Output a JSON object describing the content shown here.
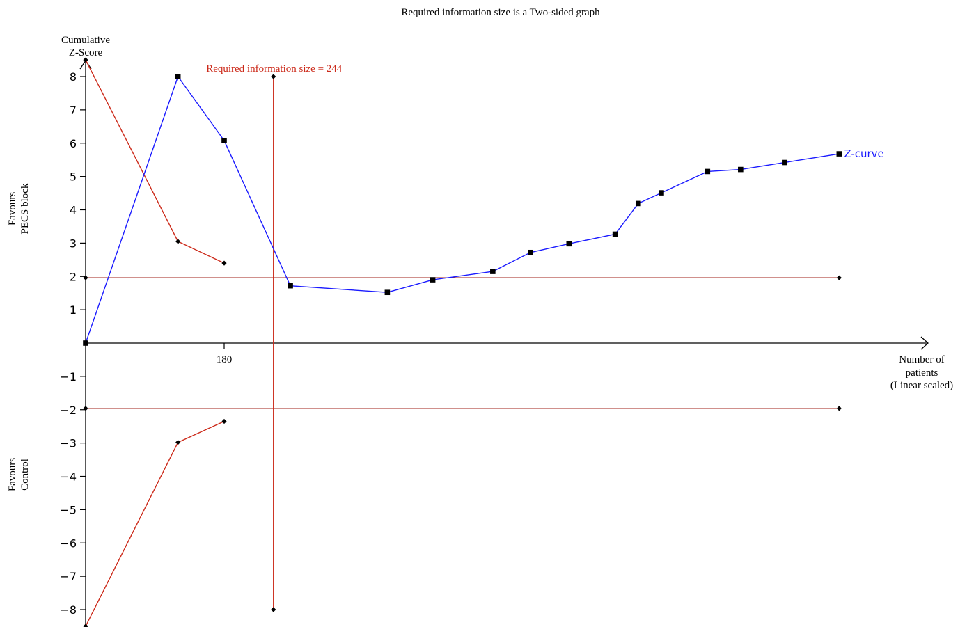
{
  "colors": {
    "zcurve": "#1a1aff",
    "boundary": "#cc2a1a",
    "axis": "#000000",
    "text": "#000000"
  },
  "chart_data": {
    "type": "line",
    "title": "Required information size is a Two-sided graph",
    "ylabel_line1": "Cumulative",
    "ylabel_line2": "Z-Score",
    "xlabel_line1": "Number of",
    "xlabel_line2": "patients",
    "xlabel_line3": "(Linear scaled)",
    "favours_top_line1": "Favours",
    "favours_top_line2": "PECS block",
    "favours_bottom_line1": "Favours",
    "favours_bottom_line2": "Control",
    "ylim": [
      -8.5,
      8.5
    ],
    "xlim": [
      0,
      1210
    ],
    "yticks": [
      {
        "value": 8,
        "label": "8"
      },
      {
        "value": 7,
        "label": "7"
      },
      {
        "value": 6,
        "label": "6"
      },
      {
        "value": 5,
        "label": "5"
      },
      {
        "value": 4,
        "label": "4"
      },
      {
        "value": 3,
        "label": "3"
      },
      {
        "value": 2,
        "label": "2"
      },
      {
        "value": 1,
        "label": "1"
      },
      {
        "value": -1,
        "label": "−1"
      },
      {
        "value": -2,
        "label": "−2"
      },
      {
        "value": -3,
        "label": "−3"
      },
      {
        "value": -4,
        "label": "−4"
      },
      {
        "value": -5,
        "label": "−5"
      },
      {
        "value": -6,
        "label": "−6"
      },
      {
        "value": -7,
        "label": "−7"
      },
      {
        "value": -8,
        "label": "−8"
      }
    ],
    "xticks": [
      {
        "value": 180,
        "label": "180"
      }
    ],
    "ris": {
      "value": 244,
      "label": "Required information size = 244",
      "ymin": -8,
      "ymax": 8
    },
    "z_curve": {
      "name": "Z-curve",
      "points": [
        [
          0,
          0.0
        ],
        [
          120,
          8.0
        ],
        [
          180,
          6.08
        ],
        [
          266,
          1.72
        ],
        [
          392,
          1.52
        ],
        [
          451,
          1.9
        ],
        [
          529,
          2.15
        ],
        [
          578,
          2.72
        ],
        [
          628,
          2.98
        ],
        [
          688,
          3.27
        ],
        [
          718,
          4.19
        ],
        [
          748,
          4.51
        ],
        [
          808,
          5.15
        ],
        [
          851,
          5.21
        ],
        [
          908,
          5.42
        ],
        [
          979,
          5.68
        ]
      ]
    },
    "upper_boundary": [
      [
        0,
        8.5
      ],
      [
        120,
        3.05
      ],
      [
        180,
        2.4
      ]
    ],
    "lower_boundary": [
      [
        0,
        -8.5
      ],
      [
        120,
        -2.98
      ],
      [
        180,
        -2.35
      ]
    ],
    "conventional_upper": [
      [
        0,
        1.96
      ],
      [
        979,
        1.96
      ]
    ],
    "conventional_lower": [
      [
        0,
        -1.96
      ],
      [
        979,
        -1.96
      ]
    ]
  }
}
